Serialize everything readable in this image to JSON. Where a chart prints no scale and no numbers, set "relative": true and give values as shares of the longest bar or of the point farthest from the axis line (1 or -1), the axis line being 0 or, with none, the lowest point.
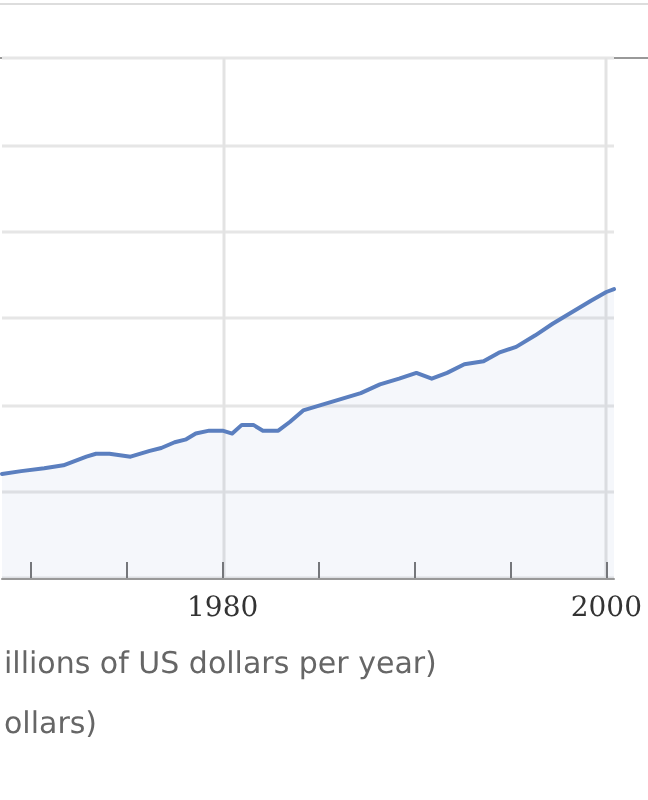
{
  "chart_data": {
    "type": "area",
    "relative": true,
    "x": [
      1968.5,
      1969.5,
      1970.7,
      1971.7,
      1972.9,
      1973.4,
      1974.1,
      1975.2,
      1976.2,
      1976.8,
      1977.5,
      1978.1,
      1978.6,
      1979.3,
      1980,
      1980.5,
      1981,
      1981.6,
      1982.1,
      1982.9,
      1983.5,
      1984.2,
      1985.2,
      1986.2,
      1987.2,
      1988.2,
      1989.2,
      1990.1,
      1990.9,
      1991.7,
      1992.6,
      1993.6,
      1994.4,
      1995.3,
      1996.3,
      1997.2,
      1998.2,
      1999.2,
      2000,
      2000.4
    ],
    "series": [
      {
        "color": "#5b7fbf",
        "values": [
          0.36,
          0.37,
          0.38,
          0.39,
          0.42,
          0.43,
          0.43,
          0.42,
          0.44,
          0.45,
          0.47,
          0.48,
          0.5,
          0.51,
          0.51,
          0.5,
          0.53,
          0.53,
          0.51,
          0.51,
          0.54,
          0.58,
          0.6,
          0.62,
          0.64,
          0.67,
          0.69,
          0.71,
          0.69,
          0.71,
          0.74,
          0.75,
          0.78,
          0.8,
          0.84,
          0.88,
          0.92,
          0.96,
          0.99,
          1
        ]
      }
    ],
    "xlim": [
      1968.5,
      2000.4
    ],
    "xticks": [
      {
        "value": 1970,
        "label": null
      },
      {
        "value": 1975,
        "label": null
      },
      1980,
      {
        "value": 1985,
        "label": null
      },
      {
        "value": 1990,
        "label": null
      },
      {
        "value": 1995,
        "label": null
      },
      2000
    ],
    "grid": true,
    "marker": "none",
    "line_style": "solid",
    "annotations": [
      "illions of US dollars per year)",
      "ollars)"
    ]
  }
}
